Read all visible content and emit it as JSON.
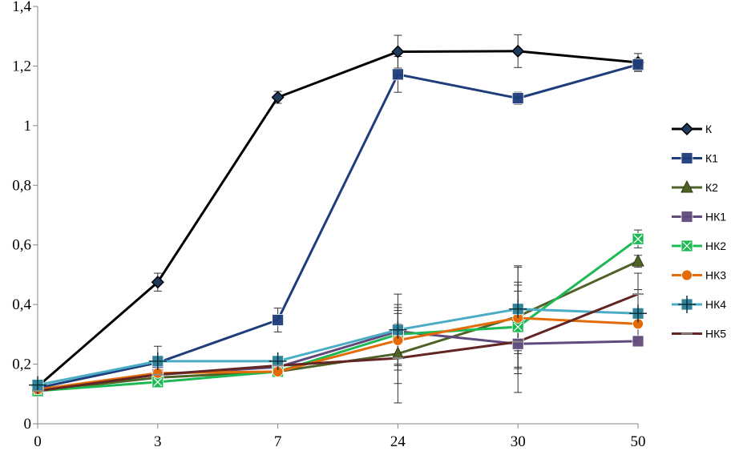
{
  "chart_data": {
    "type": "line",
    "title": "",
    "xlabel": "",
    "ylabel": "",
    "categories": [
      "0",
      "3",
      "7",
      "24",
      "30",
      "50"
    ],
    "ylim": [
      0,
      1.4
    ],
    "yticks": [
      0,
      0.2,
      0.4,
      0.6,
      0.8,
      1,
      1.2,
      1.4
    ],
    "ytick_labels": [
      "0",
      "0,2",
      "0,4",
      "0,6",
      "0,8",
      "1",
      "1,2",
      "1,4"
    ],
    "grid": false,
    "legend_position": "right",
    "series": [
      {
        "name": "К",
        "color": "#000000",
        "marker": "diamond",
        "values": [
          0.125,
          0.475,
          1.095,
          1.248,
          1.25,
          1.212
        ],
        "errors": [
          0,
          0.03,
          0.02,
          0.055,
          0.055,
          0.03
        ]
      },
      {
        "name": "К1",
        "color": "#1f3d7a",
        "marker": "square",
        "values": [
          0.12,
          0.205,
          0.348,
          1.172,
          1.092,
          1.205
        ],
        "errors": [
          0,
          0,
          0.04,
          0.06,
          0.02,
          0.02
        ]
      },
      {
        "name": "К2",
        "color": "#4f6228",
        "marker": "triangle",
        "values": [
          0.11,
          0.155,
          0.175,
          0.235,
          0.36,
          0.545
        ],
        "errors": [
          0,
          0,
          0.015,
          0.1,
          0.17,
          0.02
        ]
      },
      {
        "name": "НК1",
        "color": "#604a7b",
        "marker": "square",
        "values": [
          0.115,
          0.165,
          0.19,
          0.31,
          0.268,
          0.277
        ],
        "errors": [
          0,
          0,
          0,
          0.08,
          0.1,
          0
        ]
      },
      {
        "name": "НК2",
        "color": "#1db954",
        "marker": "cross-square",
        "values": [
          0.11,
          0.14,
          0.175,
          0.3,
          0.325,
          0.62
        ],
        "errors": [
          0,
          0,
          0,
          0.1,
          0.14,
          0.03
        ]
      },
      {
        "name": "НК3",
        "color": "#e36c09",
        "marker": "circle",
        "values": [
          0.115,
          0.17,
          0.175,
          0.28,
          0.355,
          0.335
        ],
        "errors": [
          0,
          0,
          0,
          0.1,
          0.12,
          0
        ]
      },
      {
        "name": "НК4",
        "color": "#4bacc6",
        "marker": "plus-square",
        "values": [
          0.13,
          0.21,
          0.21,
          0.315,
          0.385,
          0.37
        ],
        "errors": [
          0,
          0.05,
          0,
          0.12,
          0.14,
          0.08
        ]
      },
      {
        "name": "НК5",
        "color": "#632523",
        "marker": "dash",
        "values": [
          0.11,
          0.165,
          0.195,
          0.22,
          0.275,
          0.435
        ],
        "errors": [
          0,
          0,
          0.03,
          0.15,
          0.17,
          0.07
        ]
      }
    ]
  }
}
